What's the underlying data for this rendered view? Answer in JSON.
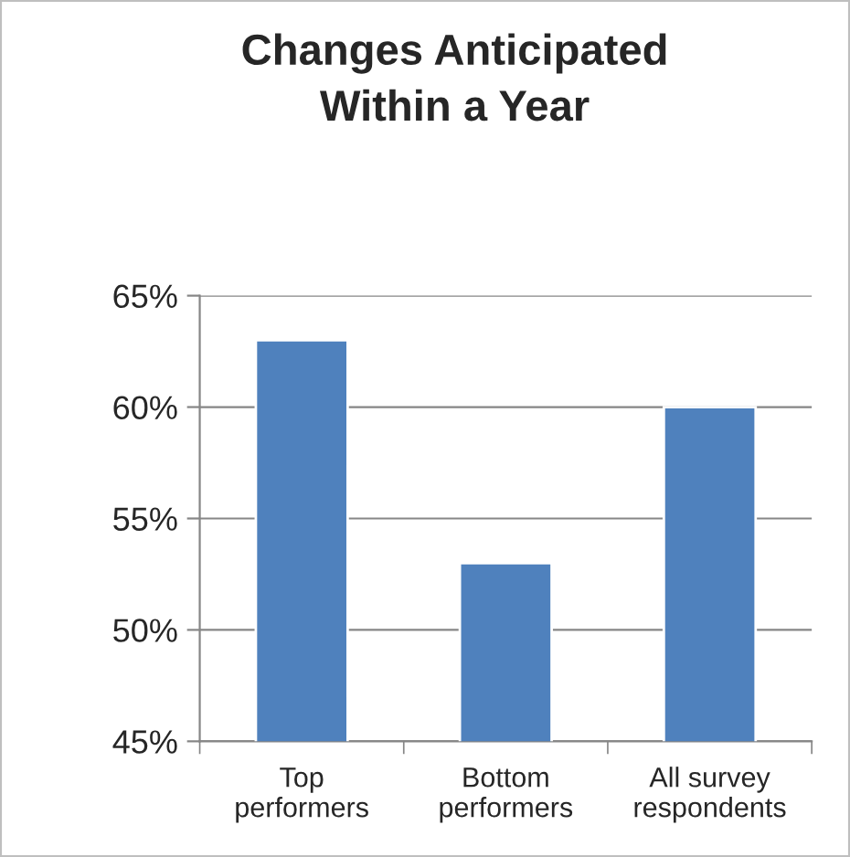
{
  "chart_data": {
    "type": "bar",
    "title": "Changes Anticipated\nWithin a Year",
    "categories": [
      "Top\nperformers",
      "Bottom\nperformers",
      "All survey\nrespondents"
    ],
    "values": [
      63,
      53,
      60
    ],
    "color": "#4f81bd",
    "ylim": [
      45,
      65
    ],
    "yticks": [
      {
        "value": 45,
        "label": "45%"
      },
      {
        "value": 50,
        "label": "50%"
      },
      {
        "value": 55,
        "label": "55%"
      },
      {
        "value": 60,
        "label": "60%"
      },
      {
        "value": 65,
        "label": "65%"
      }
    ],
    "grid": "y",
    "legend": false
  }
}
